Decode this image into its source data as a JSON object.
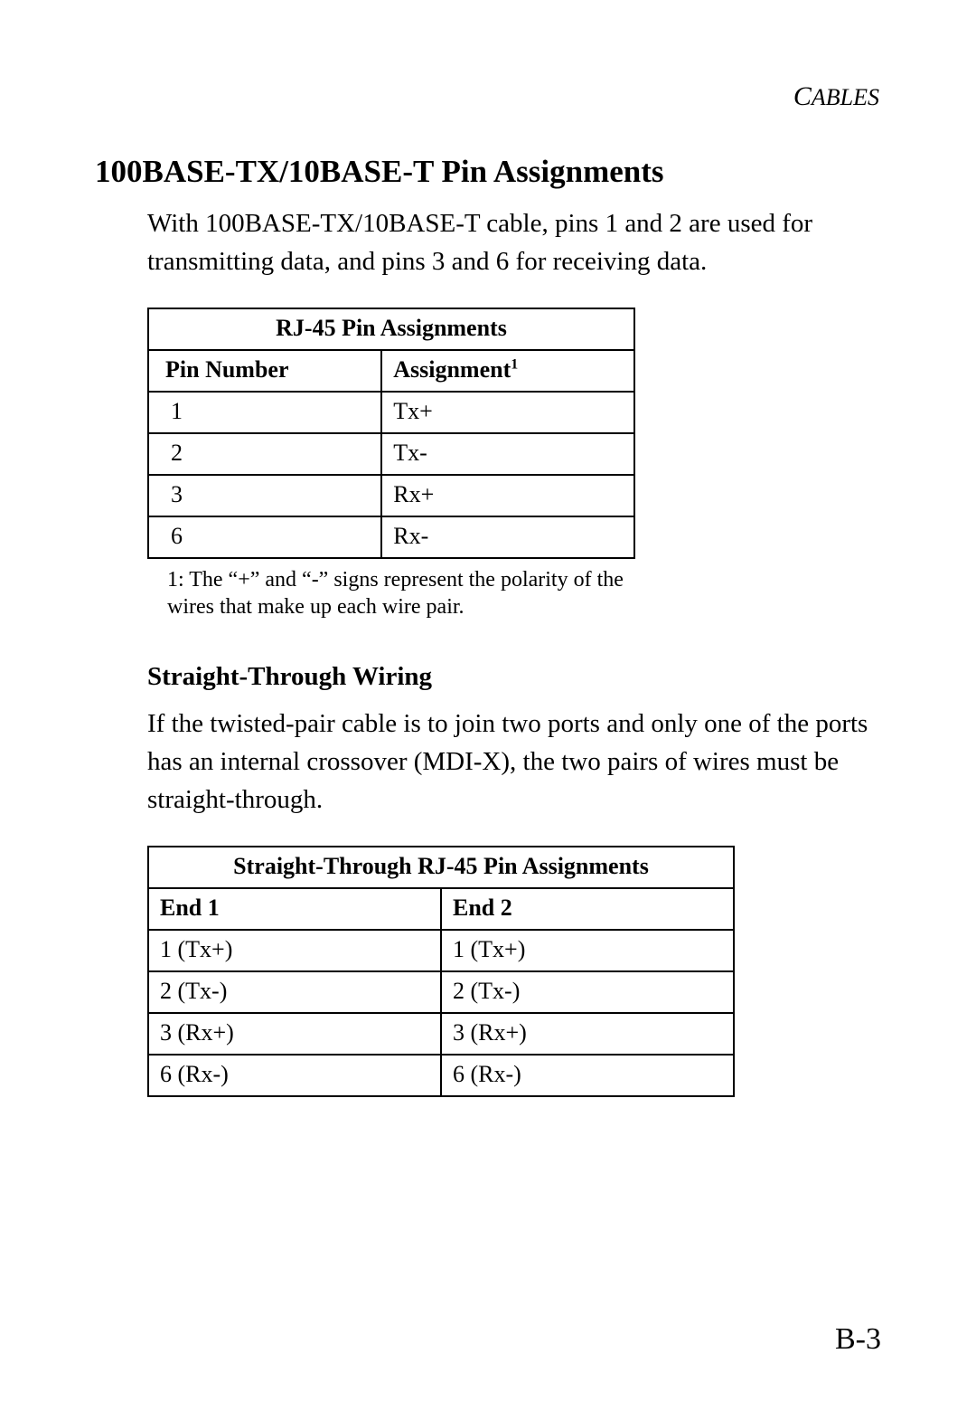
{
  "header": {
    "running_head": "CABLES"
  },
  "section": {
    "title": "100BASE-TX/10BASE-T Pin Assignments",
    "intro": "With 100BASE-TX/10BASE-T cable, pins 1 and 2 are used for transmitting data, and pins 3 and 6 for receiving data."
  },
  "table1": {
    "title": "RJ-45 Pin Assignments",
    "col1": "Pin Number",
    "col2": "Assignment",
    "col2_sup": "1",
    "rows": [
      {
        "pin": "1",
        "assign": "Tx+"
      },
      {
        "pin": "2",
        "assign": "Tx-"
      },
      {
        "pin": "3",
        "assign": "Rx+"
      },
      {
        "pin": "6",
        "assign": "Rx-"
      }
    ],
    "footnote": "1: The “+” and “-” signs represent the polarity of the wires that make up each wire pair."
  },
  "sub": {
    "heading": "Straight-Through Wiring",
    "text": "If the twisted-pair cable is to join two ports and only one of the ports has an internal crossover (MDI-X), the two pairs of wires must be straight-through."
  },
  "table2": {
    "title": "Straight-Through RJ-45 Pin Assignments",
    "col1": "End 1",
    "col2": "End 2",
    "rows": [
      {
        "e1": "1 (Tx+)",
        "e2": "1 (Tx+)"
      },
      {
        "e1": "2 (Tx-)",
        "e2": "2 (Tx-)"
      },
      {
        "e1": "3 (Rx+)",
        "e2": "3 (Rx+)"
      },
      {
        "e1": "6 (Rx-)",
        "e2": "6 (Rx-)"
      }
    ]
  },
  "page_number": "B-3"
}
